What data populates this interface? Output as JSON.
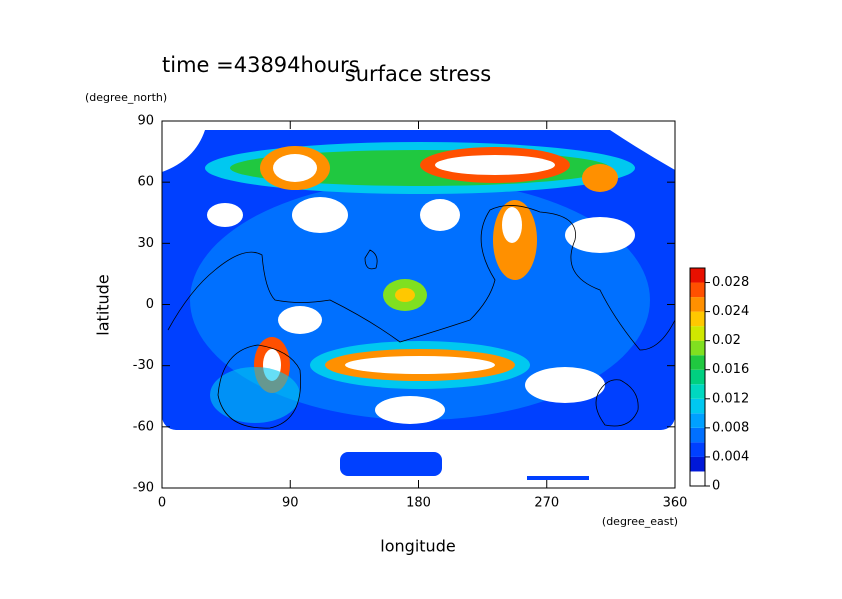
{
  "chart_data": {
    "type": "contour",
    "title": "surface stress",
    "subtitle": "time =43894hours",
    "x_label": "longitude",
    "x_unit": "(degree_east)",
    "y_label": "latitude",
    "y_unit": "(degree_north)",
    "xlim": [
      0,
      360
    ],
    "xticks": [
      0,
      90,
      180,
      270,
      360
    ],
    "ylim": [
      -90,
      90
    ],
    "yticks": [
      -90,
      -60,
      -30,
      0,
      30,
      60,
      90
    ],
    "clim": [
      0,
      0.03
    ],
    "cticks": [
      0,
      0.004,
      0.008,
      0.012,
      0.016,
      0.02,
      0.024,
      0.028
    ],
    "colors": [
      "#ffffff",
      "#0018d8",
      "#0040ff",
      "#0070ff",
      "#00a0ff",
      "#00c8f0",
      "#00d8c0",
      "#00d080",
      "#20c840",
      "#80e020",
      "#d0e800",
      "#ffc800",
      "#ff9000",
      "#ff5000",
      "#e81000"
    ]
  }
}
